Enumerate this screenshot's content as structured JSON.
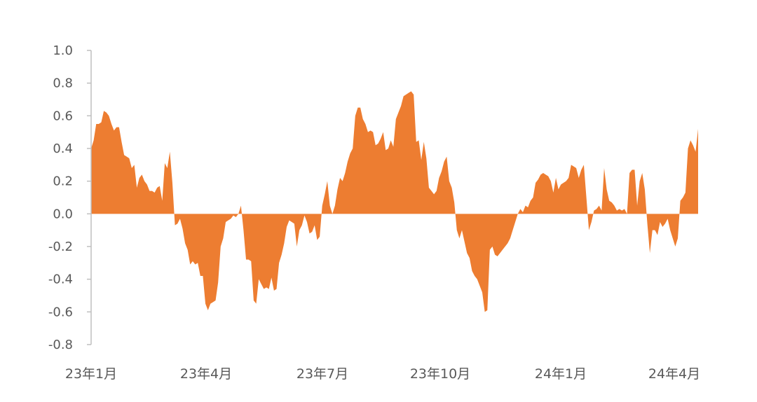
{
  "chart_data": {
    "type": "area",
    "title": "",
    "xlabel": "",
    "ylabel": "",
    "ylim": [
      -0.8,
      1.0
    ],
    "yticks": [
      "1.0",
      "0.8",
      "0.6",
      "0.4",
      "0.2",
      "0.0",
      "-0.2",
      "-0.4",
      "-0.6",
      "-0.8"
    ],
    "xticks": [
      "23年1月",
      "23年4月",
      "23年7月",
      "23年10月",
      "24年1月",
      "24年4月"
    ],
    "x_range": [
      "23年1月",
      "24年5月"
    ],
    "grid": false,
    "legend": "none",
    "colors": {
      "fill": "#ED7D31",
      "axis": "#BFBFBF",
      "text": "#595959"
    },
    "series": [
      {
        "values": [
          0.4,
          0.45,
          0.55,
          0.55,
          0.56,
          0.63,
          0.62,
          0.6,
          0.55,
          0.51,
          0.53,
          0.53,
          0.44,
          0.36,
          0.35,
          0.34,
          0.28,
          0.3,
          0.16,
          0.22,
          0.24,
          0.2,
          0.18,
          0.14,
          0.14,
          0.13,
          0.16,
          0.17,
          0.08,
          0.31,
          0.28,
          0.38,
          0.19,
          -0.07,
          -0.06,
          -0.03,
          -0.09,
          -0.18,
          -0.22,
          -0.31,
          -0.29,
          -0.31,
          -0.3,
          -0.38,
          -0.38,
          -0.55,
          -0.59,
          -0.55,
          -0.54,
          -0.53,
          -0.42,
          -0.2,
          -0.15,
          -0.05,
          -0.04,
          -0.03,
          -0.01,
          -0.02,
          0.0,
          0.05,
          -0.1,
          -0.28,
          -0.28,
          -0.29,
          -0.53,
          -0.55,
          -0.4,
          -0.43,
          -0.46,
          -0.45,
          -0.46,
          -0.39,
          -0.47,
          -0.46,
          -0.3,
          -0.25,
          -0.18,
          -0.08,
          -0.04,
          -0.05,
          -0.06,
          -0.2,
          -0.1,
          -0.07,
          -0.01,
          -0.05,
          -0.12,
          -0.11,
          -0.07,
          -0.16,
          -0.14,
          0.05,
          0.12,
          0.2,
          0.05,
          0.0,
          0.05,
          0.15,
          0.22,
          0.2,
          0.25,
          0.32,
          0.37,
          0.4,
          0.6,
          0.65,
          0.65,
          0.58,
          0.55,
          0.5,
          0.51,
          0.5,
          0.42,
          0.43,
          0.46,
          0.5,
          0.39,
          0.4,
          0.45,
          0.41,
          0.58,
          0.62,
          0.66,
          0.72,
          0.73,
          0.74,
          0.75,
          0.73,
          0.44,
          0.45,
          0.33,
          0.44,
          0.34,
          0.16,
          0.14,
          0.12,
          0.14,
          0.22,
          0.26,
          0.32,
          0.35,
          0.2,
          0.16,
          0.07,
          -0.1,
          -0.15,
          -0.1,
          -0.17,
          -0.24,
          -0.27,
          -0.35,
          -0.38,
          -0.4,
          -0.44,
          -0.48,
          -0.6,
          -0.59,
          -0.22,
          -0.2,
          -0.25,
          -0.26,
          -0.24,
          -0.22,
          -0.2,
          -0.18,
          -0.15,
          -0.1,
          -0.05,
          0.0,
          0.03,
          0.01,
          0.05,
          0.04,
          0.08,
          0.1,
          0.19,
          0.21,
          0.24,
          0.25,
          0.24,
          0.23,
          0.2,
          0.13,
          0.22,
          0.15,
          0.18,
          0.19,
          0.2,
          0.22,
          0.3,
          0.29,
          0.28,
          0.22,
          0.27,
          0.3,
          0.1,
          -0.1,
          -0.05,
          0.02,
          0.03,
          0.05,
          0.02,
          0.28,
          0.15,
          0.08,
          0.07,
          0.05,
          0.02,
          0.03,
          0.02,
          0.03,
          0.0,
          0.25,
          0.27,
          0.27,
          0.05,
          0.2,
          0.25,
          0.15,
          -0.06,
          -0.24,
          -0.1,
          -0.1,
          -0.13,
          -0.05,
          -0.08,
          -0.06,
          -0.03,
          -0.1,
          -0.15,
          -0.2,
          -0.15,
          0.08,
          0.1,
          0.13,
          0.4,
          0.45,
          0.42,
          0.38,
          0.52
        ]
      }
    ]
  }
}
